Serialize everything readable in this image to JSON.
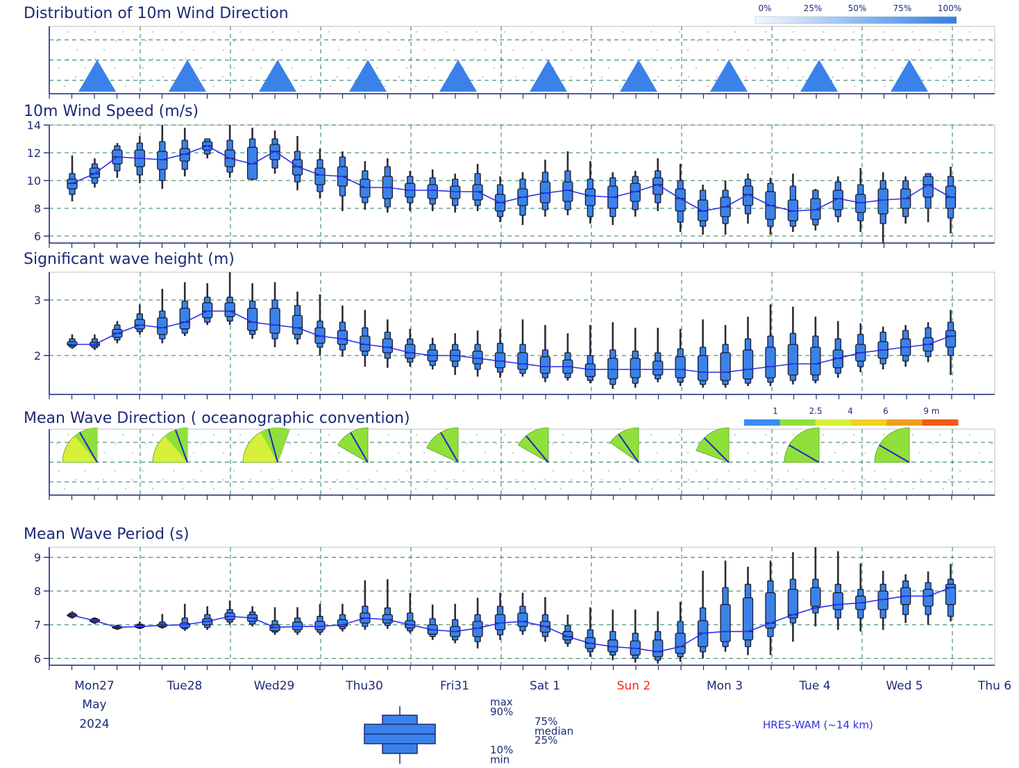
{
  "panels": {
    "wind_dir_title": "Distribution of 10m Wind Direction",
    "wind_speed_title": "10m Wind Speed (m/s)",
    "wave_height_title": "Significant wave height (m)",
    "wave_dir_title": "Mean Wave Direction ( oceanographic convention)",
    "wave_period_title": "Mean Wave Period (s)"
  },
  "wind_dir_legend": {
    "labels": [
      "0%",
      "25%",
      "50%",
      "75%",
      "100%"
    ]
  },
  "wave_dir_legend": {
    "labels": [
      "1",
      "2.5",
      "4",
      "6",
      "9 m"
    ],
    "colors": [
      "#3a8cf0",
      "#8fe03a",
      "#d6f03a",
      "#f0d020",
      "#f0a020",
      "#f05a14"
    ]
  },
  "days": [
    "Mon27",
    "Tue28",
    "Wed29",
    "Thu30",
    "Fri31",
    "Sat 1",
    "Sun 2",
    "Mon 3",
    "Tue 4",
    "Wed 5",
    "Thu 6"
  ],
  "weekend_color": "#ff2020",
  "month": "May",
  "year": "2024",
  "model_label": "HRES-WAM (~14 km)",
  "boxplot_legend": {
    "max": "max",
    "p90": "90%",
    "p75": "75%",
    "median": "median",
    "p25": "25%",
    "p10": "10%",
    "min": "min"
  },
  "colors": {
    "box": "#3a82ea",
    "line": "#2d2df0",
    "grid": "#2a7a5a",
    "text": "#1c2a78",
    "arrow": "#3a82ea",
    "fan": "#8fe03a",
    "fan_yellow": "#d6f03a"
  },
  "chart_data": [
    {
      "type": "boxplot",
      "title": "Distribution of 10m Wind Direction",
      "note": "direction arrows every 24h",
      "x": [
        "Mon27 12:00",
        "Tue28 12:00",
        "Wed29 12:00",
        "Thu30 12:00",
        "Fri31 12:00",
        "Sat 1 12:00",
        "Sun 2 12:00",
        "Mon 3 12:00",
        "Tue 4 12:00",
        "Wed 5 12:00"
      ],
      "direction_deg": [
        0,
        0,
        0,
        0,
        0,
        0,
        0,
        0,
        0,
        0
      ]
    },
    {
      "type": "boxplot",
      "title": "10m Wind Speed (m/s)",
      "ylim": [
        5.5,
        14
      ],
      "yticks": [
        6,
        8,
        10,
        12,
        14
      ],
      "median": [
        9.8,
        10.5,
        11.7,
        11.6,
        11.5,
        11.9,
        12.5,
        11.6,
        11.2,
        12.1,
        11.0,
        10.4,
        10.3,
        9.5,
        9.5,
        9.3,
        9.3,
        9.2,
        9.2,
        8.4,
        8.8,
        9.1,
        9.3,
        8.9,
        8.8,
        9.2,
        9.7,
        8.7,
        7.8,
        8.1,
        9.0,
        8.2,
        7.8,
        7.9,
        8.7,
        8.4,
        8.6,
        8.7,
        9.7,
        8.8
      ],
      "p25": [
        9.4,
        10.2,
        11.2,
        11.0,
        10.8,
        11.4,
        12.2,
        11.0,
        10.1,
        11.5,
        10.4,
        9.7,
        9.6,
        8.8,
        8.7,
        8.8,
        8.7,
        8.7,
        8.6,
        7.8,
        8.2,
        8.4,
        8.5,
        8.2,
        8.0,
        8.5,
        9.0,
        7.8,
        7.1,
        7.4,
        8.2,
        7.2,
        7.1,
        7.2,
        7.9,
        7.7,
        7.6,
        8.0,
        8.8,
        8.0
      ],
      "p75": [
        10.1,
        10.9,
        12.2,
        12.2,
        12.1,
        12.3,
        12.8,
        12.2,
        12.4,
        12.6,
        11.5,
        10.9,
        11.0,
        10.1,
        10.3,
        9.8,
        9.7,
        9.6,
        9.7,
        9.0,
        9.4,
        9.9,
        9.9,
        9.4,
        9.6,
        9.8,
        10.2,
        9.4,
        8.6,
        8.8,
        9.6,
        9.2,
        8.6,
        8.7,
        9.3,
        9.0,
        9.4,
        9.4,
        10.3,
        9.6
      ],
      "p10": [
        9.0,
        9.8,
        10.7,
        10.4,
        10.0,
        10.8,
        11.9,
        10.6,
        10.1,
        10.9,
        9.9,
        9.2,
        8.9,
        8.4,
        8.1,
        8.4,
        8.3,
        8.2,
        8.2,
        7.4,
        7.5,
        7.9,
        7.9,
        7.4,
        7.4,
        7.9,
        8.4,
        7.0,
        6.7,
        6.9,
        7.6,
        6.7,
        6.7,
        6.8,
        7.4,
        7.1,
        6.9,
        7.4,
        8.0,
        7.3
      ],
      "p90": [
        10.5,
        11.2,
        12.5,
        12.7,
        12.8,
        12.9,
        13.0,
        12.9,
        13.0,
        13.0,
        12.1,
        11.5,
        11.7,
        10.7,
        11.0,
        10.3,
        10.2,
        10.1,
        10.5,
        9.7,
        10.1,
        10.6,
        10.7,
        10.1,
        10.2,
        10.3,
        10.7,
        10.0,
        9.3,
        9.3,
        10.1,
        9.8,
        9.6,
        9.3,
        9.9,
        9.7,
        10.0,
        10.0,
        10.5,
        10.3
      ],
      "min": [
        8.5,
        9.5,
        10.2,
        9.8,
        9.4,
        10.3,
        11.6,
        10.2,
        10.0,
        10.5,
        9.3,
        8.7,
        7.8,
        7.9,
        7.7,
        7.8,
        7.8,
        7.7,
        7.8,
        7.0,
        6.8,
        7.4,
        7.5,
        6.9,
        6.8,
        7.4,
        7.8,
        6.3,
        6.1,
        6.1,
        6.9,
        6.1,
        6.3,
        6.4,
        7.0,
        6.3,
        5.5,
        6.9,
        7.0,
        6.2
      ],
      "max": [
        11.8,
        11.6,
        12.7,
        13.2,
        14.0,
        13.8,
        13.0,
        14.0,
        13.8,
        13.6,
        13.2,
        12.3,
        12.1,
        11.4,
        11.6,
        10.7,
        10.8,
        10.5,
        11.2,
        10.3,
        10.6,
        11.5,
        12.1,
        11.4,
        10.6,
        10.7,
        11.6,
        11.2,
        9.7,
        10.0,
        10.5,
        10.2,
        10.5,
        9.4,
        10.3,
        10.9,
        10.6,
        10.3,
        10.4,
        11.0
      ]
    },
    {
      "type": "boxplot",
      "title": "Significant wave height (m)",
      "ylim": [
        1.3,
        3.5
      ],
      "yticks": [
        2,
        3
      ],
      "median": [
        2.2,
        2.2,
        2.4,
        2.55,
        2.5,
        2.6,
        2.8,
        2.8,
        2.6,
        2.55,
        2.5,
        2.35,
        2.3,
        2.2,
        2.15,
        2.05,
        2.0,
        2.0,
        1.95,
        1.9,
        1.85,
        1.8,
        1.8,
        1.75,
        1.75,
        1.75,
        1.75,
        1.75,
        1.7,
        1.7,
        1.75,
        1.8,
        1.85,
        1.85,
        1.95,
        2.05,
        2.1,
        2.15,
        2.2,
        2.35
      ],
      "p25": [
        2.18,
        2.17,
        2.33,
        2.48,
        2.38,
        2.48,
        2.68,
        2.7,
        2.45,
        2.4,
        2.38,
        2.22,
        2.2,
        2.08,
        2.05,
        1.95,
        1.9,
        1.9,
        1.85,
        1.78,
        1.75,
        1.68,
        1.68,
        1.62,
        1.58,
        1.6,
        1.65,
        1.6,
        1.55,
        1.55,
        1.58,
        1.6,
        1.65,
        1.65,
        1.78,
        1.9,
        1.95,
        2.0,
        2.08,
        2.15
      ],
      "p75": [
        2.25,
        2.24,
        2.47,
        2.65,
        2.68,
        2.85,
        2.95,
        2.95,
        2.85,
        2.85,
        2.72,
        2.5,
        2.45,
        2.35,
        2.3,
        2.2,
        2.1,
        2.1,
        2.08,
        2.05,
        2.05,
        1.98,
        1.92,
        1.85,
        1.95,
        1.95,
        1.9,
        1.98,
        2.0,
        2.05,
        2.1,
        2.15,
        2.2,
        2.15,
        2.1,
        2.2,
        2.25,
        2.3,
        2.32,
        2.45
      ],
      "p10": [
        2.15,
        2.14,
        2.28,
        2.43,
        2.3,
        2.4,
        2.6,
        2.62,
        2.38,
        2.3,
        2.3,
        2.15,
        2.1,
        2.0,
        1.95,
        1.88,
        1.82,
        1.8,
        1.75,
        1.7,
        1.68,
        1.6,
        1.6,
        1.55,
        1.48,
        1.5,
        1.58,
        1.52,
        1.48,
        1.48,
        1.5,
        1.52,
        1.55,
        1.55,
        1.68,
        1.8,
        1.85,
        1.9,
        1.98,
        2.0
      ],
      "p90": [
        2.3,
        2.3,
        2.55,
        2.75,
        2.8,
        2.98,
        3.05,
        3.05,
        2.98,
        3.0,
        2.9,
        2.62,
        2.6,
        2.5,
        2.42,
        2.3,
        2.2,
        2.2,
        2.2,
        2.22,
        2.2,
        2.1,
        2.05,
        2.0,
        2.1,
        2.08,
        2.05,
        2.12,
        2.15,
        2.2,
        2.3,
        2.35,
        2.4,
        2.35,
        2.3,
        2.38,
        2.42,
        2.45,
        2.5,
        2.6
      ],
      "min": [
        2.12,
        2.1,
        2.22,
        2.38,
        2.22,
        2.35,
        2.55,
        2.55,
        2.3,
        2.15,
        2.2,
        2.0,
        1.98,
        1.8,
        1.78,
        1.8,
        1.75,
        1.65,
        1.62,
        1.6,
        1.62,
        1.52,
        1.55,
        1.5,
        1.4,
        1.42,
        1.52,
        1.45,
        1.42,
        1.42,
        1.45,
        1.45,
        1.48,
        1.5,
        1.6,
        1.7,
        1.75,
        1.8,
        1.88,
        1.65
      ],
      "max": [
        2.38,
        2.38,
        2.62,
        2.92,
        3.2,
        3.32,
        3.3,
        3.5,
        3.3,
        3.32,
        3.15,
        3.1,
        2.9,
        2.82,
        2.65,
        2.48,
        2.32,
        2.4,
        2.45,
        2.48,
        2.65,
        2.55,
        2.4,
        2.55,
        2.6,
        2.5,
        2.5,
        2.48,
        2.65,
        2.55,
        2.7,
        2.92,
        2.88,
        2.7,
        2.62,
        2.58,
        2.52,
        2.55,
        2.6,
        2.82
      ]
    },
    {
      "type": "fan",
      "title": "Mean Wave Direction ( oceanographic convention)",
      "x": [
        "Mon27 12:00",
        "Tue28 12:00",
        "Wed29 12:00",
        "Thu30 12:00",
        "Fri31 12:00",
        "Sat 1 12:00",
        "Sun 2 12:00",
        "Mon 3 12:00",
        "Tue 4 12:00",
        "Wed 5 12:00"
      ],
      "direction_deg": [
        330,
        340,
        345,
        330,
        330,
        320,
        325,
        315,
        300,
        300
      ],
      "spread_deg": [
        [
          270,
          360
        ],
        [
          270,
          360
        ],
        [
          270,
          380
        ],
        [
          300,
          360
        ],
        [
          295,
          360
        ],
        [
          300,
          360
        ],
        [
          305,
          360
        ],
        [
          290,
          360
        ],
        [
          270,
          360
        ],
        [
          270,
          360
        ]
      ],
      "height_class": [
        "2.5-4",
        "2.5-4",
        "2.5-4",
        "2.5",
        "2.5",
        "2.5",
        "2.5",
        "2.5",
        "2.5",
        "2.5"
      ]
    },
    {
      "type": "boxplot",
      "title": "Mean Wave Period (s)",
      "ylim": [
        5.8,
        9.3
      ],
      "yticks": [
        6,
        7,
        8,
        9
      ],
      "median": [
        7.28,
        7.12,
        6.92,
        6.95,
        6.98,
        7.0,
        7.1,
        7.25,
        7.2,
        6.92,
        6.95,
        6.95,
        7.0,
        7.2,
        7.15,
        7.0,
        6.85,
        6.8,
        6.9,
        7.05,
        7.1,
        6.95,
        6.65,
        6.45,
        6.35,
        6.3,
        6.2,
        6.35,
        6.75,
        6.8,
        6.8,
        7.05,
        7.3,
        7.5,
        7.6,
        7.65,
        7.75,
        7.85,
        7.85,
        8.1
      ],
      "p25": [
        7.25,
        7.09,
        6.9,
        6.92,
        6.95,
        6.92,
        7.0,
        7.15,
        7.1,
        6.82,
        6.85,
        6.85,
        6.95,
        7.05,
        7.05,
        6.9,
        6.72,
        6.65,
        6.65,
        6.85,
        6.95,
        6.78,
        6.55,
        6.3,
        6.2,
        6.1,
        6.05,
        6.15,
        6.35,
        6.5,
        6.55,
        6.9,
        7.2,
        7.55,
        7.45,
        7.45,
        7.45,
        7.6,
        7.55,
        7.6
      ],
      "p75": [
        7.31,
        7.16,
        6.95,
        6.99,
        7.02,
        7.05,
        7.18,
        7.35,
        7.3,
        7.0,
        7.08,
        7.1,
        7.15,
        7.35,
        7.3,
        7.12,
        7.0,
        6.95,
        7.1,
        7.3,
        7.35,
        7.1,
        6.8,
        6.62,
        6.55,
        6.52,
        6.55,
        6.75,
        7.12,
        7.6,
        7.8,
        7.95,
        8.05,
        8.1,
        7.95,
        7.85,
        8.0,
        8.1,
        8.05,
        8.2
      ],
      "p10": [
        7.22,
        7.06,
        6.88,
        6.9,
        6.92,
        6.88,
        6.92,
        7.08,
        7.02,
        6.78,
        6.78,
        6.78,
        6.88,
        6.95,
        6.98,
        6.82,
        6.65,
        6.55,
        6.5,
        6.7,
        6.82,
        6.65,
        6.45,
        6.2,
        6.1,
        6.0,
        5.95,
        6.05,
        6.2,
        6.35,
        6.35,
        6.65,
        7.05,
        7.35,
        7.2,
        7.2,
        7.2,
        7.3,
        7.3,
        7.25
      ],
      "p90": [
        7.35,
        7.19,
        6.97,
        7.02,
        7.08,
        7.2,
        7.3,
        7.45,
        7.38,
        7.12,
        7.2,
        7.25,
        7.3,
        7.55,
        7.5,
        7.35,
        7.18,
        7.15,
        7.3,
        7.55,
        7.55,
        7.3,
        6.98,
        6.85,
        6.8,
        6.75,
        6.8,
        7.1,
        7.5,
        8.1,
        8.2,
        8.3,
        8.35,
        8.35,
        8.2,
        8.05,
        8.2,
        8.3,
        8.25,
        8.35
      ],
      "min": [
        7.18,
        7.02,
        6.85,
        6.87,
        6.88,
        6.82,
        6.85,
        7.0,
        6.95,
        6.7,
        6.7,
        6.7,
        6.8,
        6.85,
        6.88,
        6.75,
        6.55,
        6.45,
        6.3,
        6.55,
        6.7,
        6.5,
        6.35,
        6.05,
        5.95,
        5.88,
        5.85,
        5.9,
        6.0,
        6.2,
        6.1,
        6.1,
        6.5,
        6.95,
        6.85,
        6.8,
        6.85,
        7.05,
        7.0,
        7.1
      ],
      "max": [
        7.4,
        7.22,
        7.0,
        7.1,
        7.32,
        7.62,
        7.55,
        7.72,
        7.55,
        7.52,
        7.52,
        7.62,
        7.62,
        8.32,
        8.35,
        7.95,
        7.6,
        7.62,
        7.8,
        7.95,
        7.95,
        7.82,
        7.3,
        7.52,
        7.45,
        7.45,
        7.4,
        7.68,
        8.6,
        8.9,
        8.72,
        8.9,
        9.15,
        9.3,
        9.18,
        8.82,
        8.6,
        8.5,
        8.58,
        8.8
      ]
    }
  ]
}
